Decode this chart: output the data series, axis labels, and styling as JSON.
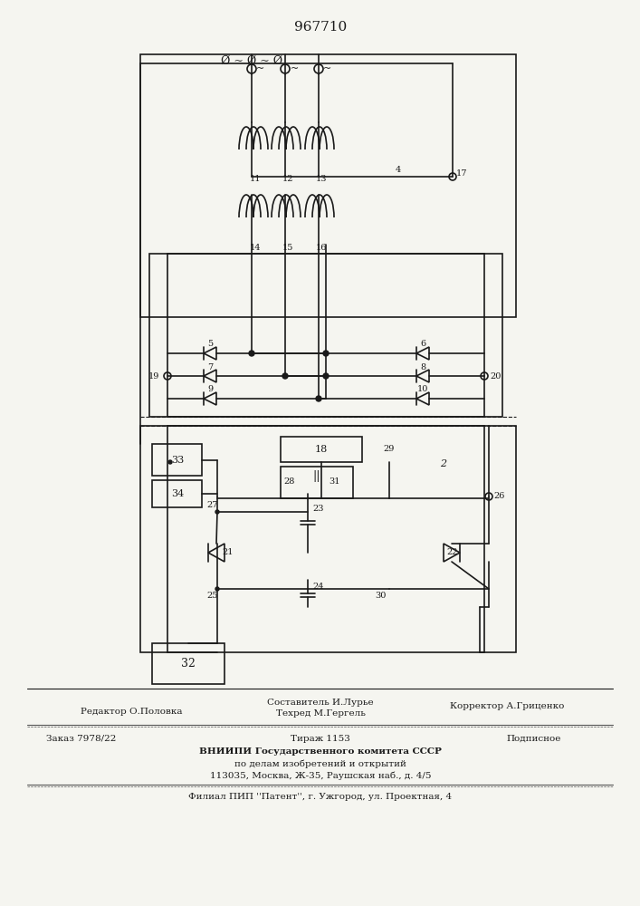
{
  "title": "967710",
  "bg_color": "#f5f5f0",
  "line_color": "#1a1a1a",
  "footer_lines": [
    {
      "left": "Редактор О.Половка",
      "center": "Составитель И.Лурье",
      "right": "Корректор А.Гриценко"
    },
    {
      "center": "Техред М.Гергель"
    },
    {
      "left": "Заказ 7978/22",
      "center": "Тираж 1153",
      "right": "Подписное"
    },
    {
      "center": "ВНИИПИ Государственного комитета СССР"
    },
    {
      "center": "по делам изобретений и открытий"
    },
    {
      "center": "113035, Москва, Ж-35, Раушская наб., д. 4/5"
    },
    {
      "center": "Филиал ППП ''Патент'', г. Ужгород, ул. Проектная, 4"
    }
  ]
}
